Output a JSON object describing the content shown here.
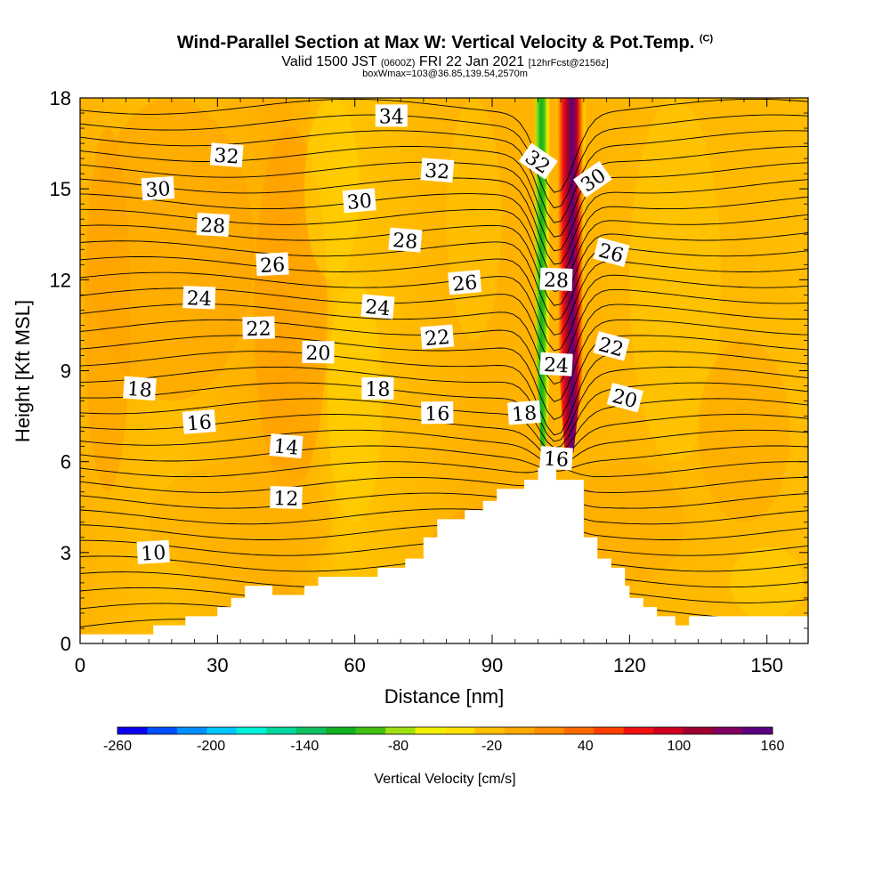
{
  "title": "Wind-Parallel Section at Max W: Vertical Velocity & Pot.Temp.",
  "copyright": "(C)",
  "subtitle_main": "Valid 1500 JST",
  "subtitle_utc": "(0600Z)",
  "subtitle_date": "FRI 22 Jan 2021",
  "subtitle_fcst": "[12hrFcst@2156z]",
  "subtitle2": "boxWmax=103@36.85,139.54,2570m",
  "colorbar": {
    "label": "Vertical Velocity [cm/s]",
    "ticks": [
      "-260",
      "-200",
      "-140",
      "-80",
      "-20",
      "40",
      "100",
      "160"
    ],
    "tick_values": [
      -260,
      -200,
      -140,
      -80,
      -20,
      40,
      100,
      160
    ],
    "colors": [
      "#0a00f0",
      "#0050ff",
      "#0090ff",
      "#00c8ff",
      "#00f0d8",
      "#00d8a0",
      "#10c060",
      "#10b020",
      "#40c010",
      "#a0e010",
      "#f0f000",
      "#ffe000",
      "#ffc000",
      "#ffa800",
      "#ff8c00",
      "#ff6a00",
      "#ff4000",
      "#f01010",
      "#d00020",
      "#a00030",
      "#800060",
      "#5a0080"
    ]
  },
  "chart_data": {
    "type": "heatmap",
    "xlabel": "Distance [nm]",
    "ylabel": "Height [Kft MSL]",
    "xlim": [
      0,
      159
    ],
    "ylim": [
      0,
      18
    ],
    "xticks": [
      0,
      30,
      60,
      90,
      120,
      150
    ],
    "yticks": [
      0,
      3,
      6,
      9,
      12,
      15,
      18
    ],
    "terrain": [
      [
        0,
        0.3
      ],
      [
        16,
        0.3
      ],
      [
        16,
        0.6
      ],
      [
        23,
        0.6
      ],
      [
        23,
        0.9
      ],
      [
        30,
        0.9
      ],
      [
        30,
        1.2
      ],
      [
        33,
        1.2
      ],
      [
        33,
        1.5
      ],
      [
        36,
        1.5
      ],
      [
        36,
        1.9
      ],
      [
        42,
        1.9
      ],
      [
        42,
        1.6
      ],
      [
        49,
        1.6
      ],
      [
        49,
        1.9
      ],
      [
        52,
        1.9
      ],
      [
        52,
        2.2
      ],
      [
        65,
        2.2
      ],
      [
        65,
        2.5
      ],
      [
        71,
        2.5
      ],
      [
        71,
        2.8
      ],
      [
        75,
        2.8
      ],
      [
        75,
        3.5
      ],
      [
        78,
        3.5
      ],
      [
        78,
        4.1
      ],
      [
        84,
        4.1
      ],
      [
        84,
        4.4
      ],
      [
        88,
        4.4
      ],
      [
        88,
        4.7
      ],
      [
        91,
        4.7
      ],
      [
        91,
        5.1
      ],
      [
        97,
        5.1
      ],
      [
        97,
        5.4
      ],
      [
        100,
        5.4
      ],
      [
        100,
        5.8
      ],
      [
        104,
        5.8
      ],
      [
        104,
        5.4
      ],
      [
        110,
        5.4
      ],
      [
        110,
        4.7
      ],
      [
        110,
        3.5
      ],
      [
        110,
        3.5
      ],
      [
        113,
        3.5
      ],
      [
        113,
        2.8
      ],
      [
        116,
        2.8
      ],
      [
        116,
        2.5
      ],
      [
        119,
        2.5
      ],
      [
        119,
        1.9
      ],
      [
        120,
        1.9
      ],
      [
        120,
        1.5
      ],
      [
        123,
        1.5
      ],
      [
        123,
        1.2
      ],
      [
        126,
        1.2
      ],
      [
        126,
        0.9
      ],
      [
        130,
        0.9
      ],
      [
        130,
        0.6
      ],
      [
        133,
        0.6
      ],
      [
        133,
        0.9
      ],
      [
        159,
        0.9
      ]
    ],
    "theta_contour_labels": [
      {
        "text": "34",
        "x": 68,
        "y": 17.4
      },
      {
        "text": "32",
        "x": 32,
        "y": 16.1
      },
      {
        "text": "32",
        "x": 78,
        "y": 15.6
      },
      {
        "text": "32",
        "x": 100,
        "y": 15.9
      },
      {
        "text": "30",
        "x": 17,
        "y": 15.0
      },
      {
        "text": "30",
        "x": 61,
        "y": 14.6
      },
      {
        "text": "30",
        "x": 112,
        "y": 15.3
      },
      {
        "text": "28",
        "x": 29,
        "y": 13.8
      },
      {
        "text": "28",
        "x": 71,
        "y": 13.3
      },
      {
        "text": "28",
        "x": 104,
        "y": 12.0
      },
      {
        "text": "26",
        "x": 42,
        "y": 12.5
      },
      {
        "text": "26",
        "x": 84,
        "y": 11.9
      },
      {
        "text": "26",
        "x": 116,
        "y": 12.9
      },
      {
        "text": "24",
        "x": 26,
        "y": 11.4
      },
      {
        "text": "24",
        "x": 65,
        "y": 11.1
      },
      {
        "text": "24",
        "x": 104,
        "y": 9.2
      },
      {
        "text": "22",
        "x": 39,
        "y": 10.4
      },
      {
        "text": "22",
        "x": 78,
        "y": 10.1
      },
      {
        "text": "22",
        "x": 116,
        "y": 9.8
      },
      {
        "text": "20",
        "x": 52,
        "y": 9.6
      },
      {
        "text": "20",
        "x": 119,
        "y": 8.1
      },
      {
        "text": "18",
        "x": 13,
        "y": 8.4
      },
      {
        "text": "18",
        "x": 65,
        "y": 8.4
      },
      {
        "text": "18",
        "x": 97,
        "y": 7.6
      },
      {
        "text": "16",
        "x": 26,
        "y": 7.3
      },
      {
        "text": "16",
        "x": 78,
        "y": 7.6
      },
      {
        "text": "16",
        "x": 104,
        "y": 6.1
      },
      {
        "text": "14",
        "x": 45,
        "y": 6.5
      },
      {
        "text": "12",
        "x": 45,
        "y": 4.8
      },
      {
        "text": "10",
        "x": 16,
        "y": 3.0
      }
    ],
    "updraft_core": {
      "x_center": 107,
      "width": 4,
      "bottom": 6.3,
      "max_w": 160
    },
    "downdraft_core": {
      "x_center": 101,
      "width": 2.5,
      "bottom": 6.5,
      "min_w": -140
    }
  }
}
